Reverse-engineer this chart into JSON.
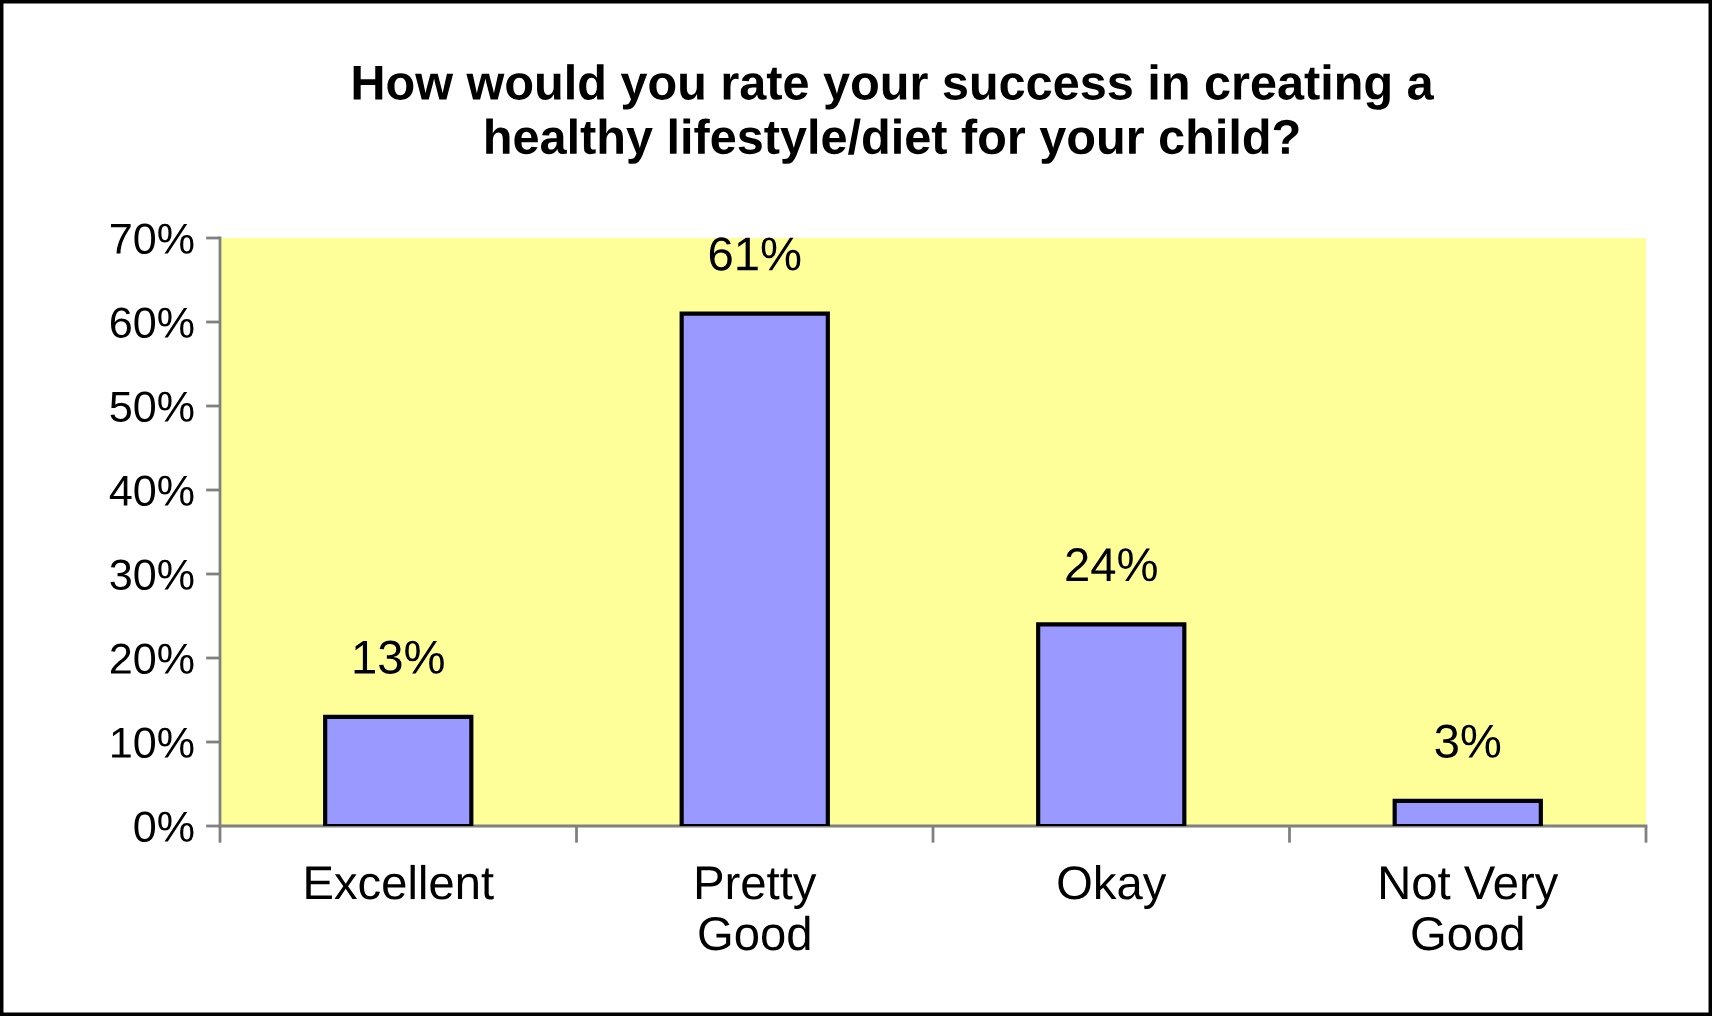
{
  "chart_data": {
    "type": "bar",
    "title": "How would you rate your success in creating a\nhealthy lifestyle/diet for your child?",
    "categories": [
      "Excellent",
      "Pretty\nGood",
      "Okay",
      "Not Very\nGood"
    ],
    "values": [
      13,
      61,
      24,
      3
    ],
    "value_labels": [
      "13%",
      "61%",
      "24%",
      "3%"
    ],
    "color": "#9999ff",
    "ylim": [
      0,
      70
    ],
    "yticks": [
      {
        "value": 0,
        "label": "0%"
      },
      {
        "value": 10,
        "label": "10%"
      },
      {
        "value": 20,
        "label": "20%"
      },
      {
        "value": 30,
        "label": "30%"
      },
      {
        "value": 40,
        "label": "40%"
      },
      {
        "value": 50,
        "label": "50%"
      },
      {
        "value": 60,
        "label": "60%"
      },
      {
        "value": 70,
        "label": "70%"
      }
    ],
    "grid": false,
    "legend": false
  }
}
